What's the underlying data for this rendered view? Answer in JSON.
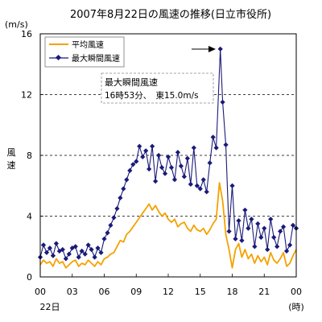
{
  "chart_data": {
    "type": "line",
    "title": "2007年8月22日の風速の推移(日立市役所)",
    "ylabel_unit": "(m/s)",
    "ylabel": "風速",
    "xlabel_unit": "(時)",
    "x_date_label": "22日",
    "x_ticks": [
      "00",
      "03",
      "06",
      "09",
      "12",
      "15",
      "18",
      "21",
      "00"
    ],
    "y_ticks": [
      "0",
      "4",
      "8",
      "12",
      "16"
    ],
    "ylim": [
      0,
      16
    ],
    "xlim": [
      0,
      24
    ],
    "grid": "horizontal dashed",
    "legend": "top-left",
    "annotation": {
      "line1": "最大瞬間風速",
      "line2": "16時53分、　東15.0m/s"
    },
    "colors": {
      "avg": "#f5a100",
      "max": "#1a1a7a",
      "marker": "#1a1a7a"
    },
    "series": [
      {
        "name": "平均風速",
        "x": [
          0,
          0.3,
          0.6,
          0.9,
          1.2,
          1.5,
          1.8,
          2.1,
          2.4,
          2.7,
          3.0,
          3.3,
          3.6,
          3.9,
          4.2,
          4.5,
          4.8,
          5.1,
          5.4,
          5.7,
          6.0,
          6.3,
          6.6,
          6.9,
          7.2,
          7.5,
          7.8,
          8.1,
          8.4,
          8.7,
          9.0,
          9.3,
          9.6,
          9.9,
          10.2,
          10.5,
          10.8,
          11.1,
          11.4,
          11.7,
          12.0,
          12.3,
          12.6,
          12.9,
          13.2,
          13.5,
          13.8,
          14.1,
          14.4,
          14.7,
          15.0,
          15.3,
          15.6,
          15.9,
          16.2,
          16.5,
          16.8,
          17.1,
          17.4,
          17.7,
          18.0,
          18.3,
          18.6,
          18.9,
          19.2,
          19.5,
          19.8,
          20.1,
          20.4,
          20.7,
          21.0,
          21.3,
          21.6,
          21.9,
          22.2,
          22.5,
          22.8,
          23.1,
          23.4,
          23.7,
          24.0
        ],
        "values": [
          0.8,
          1.1,
          0.9,
          1.0,
          0.7,
          1.2,
          0.9,
          1.0,
          0.6,
          0.8,
          1.0,
          1.1,
          0.7,
          0.9,
          0.8,
          1.1,
          0.9,
          0.7,
          1.0,
          0.8,
          1.2,
          1.3,
          1.5,
          1.6,
          2.0,
          2.4,
          2.3,
          2.8,
          3.0,
          3.3,
          3.6,
          3.9,
          4.2,
          4.5,
          4.8,
          4.4,
          4.7,
          4.3,
          4.0,
          4.2,
          3.8,
          3.6,
          3.8,
          3.3,
          3.5,
          3.6,
          3.2,
          3.0,
          3.4,
          3.1,
          3.0,
          3.2,
          2.8,
          3.1,
          3.5,
          3.8,
          6.2,
          5.0,
          2.8,
          1.8,
          0.6,
          1.8,
          2.2,
          1.3,
          1.8,
          1.2,
          1.5,
          0.9,
          1.4,
          1.0,
          1.3,
          0.8,
          1.6,
          1.1,
          0.9,
          1.2,
          1.6,
          0.7,
          0.9,
          1.4,
          1.8
        ]
      },
      {
        "name": "最大瞬間風速",
        "x": [
          0,
          0.3,
          0.6,
          0.9,
          1.2,
          1.5,
          1.8,
          2.1,
          2.4,
          2.7,
          3.0,
          3.3,
          3.6,
          3.9,
          4.2,
          4.5,
          4.8,
          5.1,
          5.4,
          5.7,
          6.0,
          6.3,
          6.6,
          6.9,
          7.2,
          7.5,
          7.8,
          8.1,
          8.4,
          8.7,
          9.0,
          9.3,
          9.6,
          9.9,
          10.2,
          10.5,
          10.8,
          11.1,
          11.4,
          11.7,
          12.0,
          12.3,
          12.6,
          12.9,
          13.2,
          13.5,
          13.8,
          14.1,
          14.4,
          14.7,
          15.0,
          15.3,
          15.6,
          15.9,
          16.2,
          16.5,
          16.88,
          17.1,
          17.4,
          17.7,
          18.0,
          18.3,
          18.6,
          18.9,
          19.2,
          19.5,
          19.8,
          20.1,
          20.4,
          20.7,
          21.0,
          21.3,
          21.6,
          21.9,
          22.2,
          22.5,
          22.8,
          23.1,
          23.4,
          23.7,
          24.0
        ],
        "values": [
          1.3,
          2.1,
          1.6,
          1.9,
          1.4,
          2.2,
          1.7,
          1.8,
          1.2,
          1.5,
          1.9,
          2.0,
          1.3,
          1.7,
          1.5,
          2.1,
          1.8,
          1.3,
          1.9,
          1.6,
          2.5,
          2.9,
          3.4,
          3.9,
          4.5,
          5.2,
          5.8,
          6.4,
          7.0,
          7.4,
          7.6,
          8.6,
          7.9,
          8.3,
          7.1,
          8.6,
          6.3,
          8.0,
          7.2,
          6.8,
          7.9,
          7.2,
          6.4,
          8.2,
          7.3,
          6.6,
          7.8,
          6.1,
          8.5,
          6.0,
          5.8,
          6.4,
          5.6,
          7.5,
          9.2,
          8.5,
          15.0,
          11.5,
          8.7,
          3.0,
          6.0,
          2.5,
          3.7,
          2.4,
          4.4,
          3.2,
          3.8,
          2.0,
          3.5,
          2.6,
          3.2,
          1.8,
          3.8,
          2.6,
          2.0,
          3.0,
          3.3,
          1.7,
          2.1,
          3.4,
          3.2
        ]
      }
    ]
  }
}
